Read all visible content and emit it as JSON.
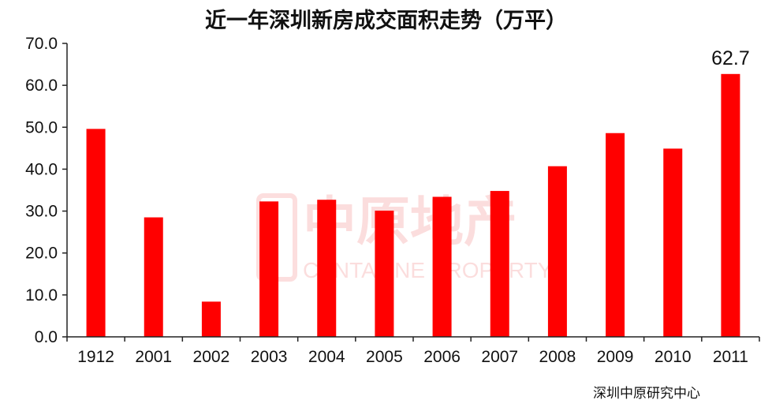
{
  "title": "近一年深圳新房成交面积走势（万平）",
  "source": "深圳中原研究中心",
  "watermark": {
    "text": "中原地产",
    "subtext": "CENTALINE PROPERTY"
  },
  "chart_data": {
    "type": "bar",
    "title": "近一年深圳新房成交面积走势（万平）",
    "xlabel": "",
    "ylabel": "",
    "categories": [
      "1912",
      "2001",
      "2002",
      "2003",
      "2004",
      "2005",
      "2006",
      "2007",
      "2008",
      "2009",
      "2010",
      "2011"
    ],
    "values": [
      49.6,
      28.5,
      8.4,
      32.3,
      32.7,
      30.1,
      33.4,
      34.8,
      40.7,
      48.6,
      44.9,
      62.7
    ],
    "data_labels": [
      {
        "index": 11,
        "text": "62.7"
      }
    ],
    "ylim": [
      0,
      70
    ],
    "yticks": [
      "0.0",
      "10.0",
      "20.0",
      "30.0",
      "40.0",
      "50.0",
      "60.0",
      "70.0"
    ],
    "bar_color": "#ff0000",
    "grid": false,
    "legend": "none"
  }
}
